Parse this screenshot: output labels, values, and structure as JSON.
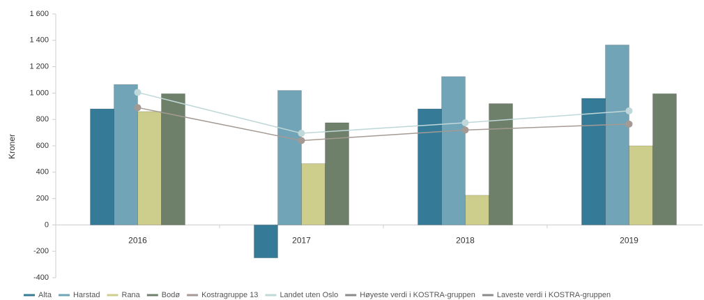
{
  "chart_data": {
    "type": "bar",
    "y_label": "Kroner",
    "categories": [
      "2016",
      "2017",
      "2018",
      "2019"
    ],
    "ylim": [
      -400,
      1600
    ],
    "yticks": [
      -400,
      -200,
      0,
      200,
      400,
      600,
      800,
      {
        "value": 1000,
        "label": "1 000"
      },
      {
        "value": 1200,
        "label": "1 200"
      },
      {
        "value": 1400,
        "label": "1 400"
      },
      {
        "value": 1600,
        "label": "1 600"
      }
    ],
    "grid": false,
    "legend": "bottom",
    "series": [
      {
        "name": "Alta",
        "type": "bar",
        "color": "#357a97",
        "values": [
          880,
          -250,
          880,
          960
        ]
      },
      {
        "name": "Harstad",
        "type": "bar",
        "color": "#72a4b8",
        "values": [
          1065,
          1020,
          1125,
          1365
        ]
      },
      {
        "name": "Rana",
        "type": "bar",
        "color": "#cdcd8c",
        "values": [
          860,
          465,
          225,
          600
        ]
      },
      {
        "name": "Bodø",
        "type": "bar",
        "color": "#6e806a",
        "values": [
          995,
          775,
          920,
          995
        ]
      },
      {
        "name": "Kostragruppe 13",
        "type": "line",
        "color": "#a59a93",
        "values": [
          890,
          640,
          720,
          765
        ]
      },
      {
        "name": "Landet uten Oslo",
        "type": "line",
        "color": "#c0d8d9",
        "values": [
          1005,
          695,
          775,
          865
        ]
      },
      {
        "name": "Høyeste verdi i KOSTRA-gruppen",
        "type": "line",
        "color": "#8a8a8a",
        "values": [
          null,
          null,
          null,
          null
        ]
      },
      {
        "name": "Laveste verdi i KOSTRA-gruppen",
        "type": "line",
        "color": "#8a8a8a",
        "values": [
          null,
          null,
          null,
          null
        ]
      }
    ]
  }
}
